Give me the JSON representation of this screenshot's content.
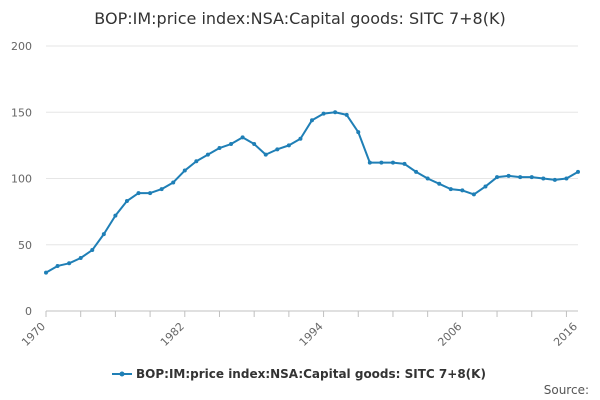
{
  "chart_data": {
    "type": "line",
    "title": "BOP:IM:price index:NSA:Capital goods: SITC 7+8(K)",
    "xlabel": "",
    "ylabel": "",
    "xlim": [
      1970,
      2016
    ],
    "ylim": [
      0,
      200
    ],
    "y_ticks": [
      0,
      50,
      100,
      150,
      200
    ],
    "x_ticks": [
      1970,
      1982,
      1994,
      2006,
      2016
    ],
    "x_tick_labels": [
      "1970",
      "1982",
      "1994",
      "2006",
      "2016"
    ],
    "grid": "horizontal",
    "legend_position": "bottom",
    "series": [
      {
        "name": "BOP:IM:price index:NSA:Capital goods: SITC 7+8(K)",
        "color": "#1f7fb6",
        "x": [
          1970,
          1971,
          1972,
          1973,
          1974,
          1975,
          1976,
          1977,
          1978,
          1979,
          1980,
          1981,
          1982,
          1983,
          1984,
          1985,
          1986,
          1987,
          1988,
          1989,
          1990,
          1991,
          1992,
          1993,
          1994,
          1995,
          1996,
          1997,
          1998,
          1999,
          2000,
          2001,
          2002,
          2003,
          2004,
          2005,
          2006,
          2007,
          2008,
          2009,
          2010,
          2011,
          2012,
          2013,
          2014,
          2015,
          2016
        ],
        "values": [
          29,
          34,
          36,
          40,
          46,
          58,
          72,
          83,
          89,
          89,
          92,
          97,
          106,
          113,
          118,
          123,
          126,
          131,
          126,
          118,
          122,
          125,
          130,
          144,
          149,
          150,
          148,
          135,
          112,
          112,
          112,
          111,
          105,
          100,
          96,
          92,
          91,
          88,
          94,
          101,
          102,
          101,
          101,
          100,
          99,
          100,
          105
        ]
      }
    ]
  },
  "credit": "Source:"
}
